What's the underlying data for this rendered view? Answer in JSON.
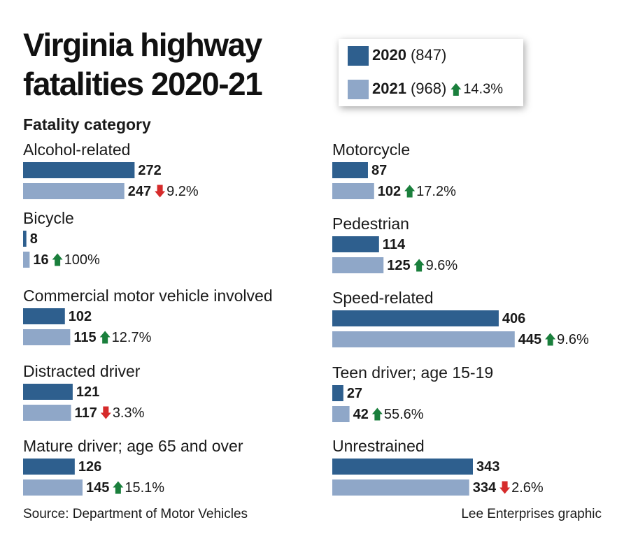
{
  "chart_data": {
    "type": "bar",
    "title": "Virginia highway fatalities 2020-21",
    "subtitle": "Fatality category",
    "categories": [
      "Alcohol-related",
      "Bicycle",
      "Commercial motor vehicle involved",
      "Distracted driver",
      "Mature driver; age 65 and over",
      "Motorcycle",
      "Pedestrian",
      "Speed-related",
      "Teen driver; age 15-19",
      "Unrestrained"
    ],
    "series": [
      {
        "name": "2020",
        "color": "#2e5f8e",
        "total": 847,
        "total_label": "(847)",
        "values": [
          272,
          8,
          102,
          121,
          126,
          87,
          114,
          406,
          27,
          343
        ]
      },
      {
        "name": "2021",
        "color": "#8fa7c8",
        "total": 968,
        "total_label": "(968)",
        "total_change": 14.3,
        "total_change_label": "14.3%",
        "values": [
          247,
          16,
          115,
          117,
          145,
          102,
          125,
          445,
          42,
          334
        ]
      }
    ],
    "changes": [
      -9.2,
      100,
      12.7,
      -3.3,
      15.1,
      17.2,
      9.6,
      9.6,
      55.6,
      -2.6
    ],
    "change_labels": [
      "9.2%",
      "100%",
      "12.7%",
      "3.3%",
      "15.1%",
      "17.2%",
      "9.6%",
      "9.6%",
      "55.6%",
      "2.6%"
    ],
    "up_color": "#1a7f3c",
    "down_color": "#d62b2b",
    "source": "Source: Department of Motor Vehicles",
    "credit": "Lee Enterprises graphic"
  }
}
